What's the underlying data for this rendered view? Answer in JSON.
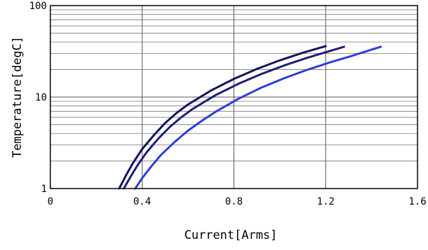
{
  "chart_data": {
    "type": "line",
    "title": "",
    "xlabel": "Current[Arms]",
    "ylabel": "Temperature[degC]",
    "xlim": [
      0,
      1.6
    ],
    "ylim": [
      1,
      100
    ],
    "y_scale": "log",
    "grid": true,
    "legend": "none",
    "x_ticks": [
      {
        "value": 0,
        "label": "0"
      },
      {
        "value": 0.4,
        "label": "0.4"
      },
      {
        "value": 0.8,
        "label": "0.8"
      },
      {
        "value": 1.2,
        "label": "1.2"
      },
      {
        "value": 1.6,
        "label": "1.6"
      }
    ],
    "y_ticks": [
      {
        "value": 1,
        "label": "1"
      },
      {
        "value": 10,
        "label": "10"
      },
      {
        "value": 100,
        "label": "100"
      }
    ],
    "series": [
      {
        "color": "#14145a",
        "x": [
          0.3,
          0.33,
          0.36,
          0.4,
          0.45,
          0.5,
          0.55,
          0.6,
          0.7,
          0.8,
          0.9,
          1.0,
          1.1,
          1.2
        ],
        "y": [
          1.0,
          1.4,
          1.9,
          2.7,
          3.8,
          5.2,
          6.7,
          8.3,
          11.8,
          15.8,
          20.3,
          25.2,
          30.5,
          36.0
        ]
      },
      {
        "color": "#1a1e78",
        "x": [
          0.32,
          0.35,
          0.38,
          0.42,
          0.47,
          0.52,
          0.57,
          0.62,
          0.72,
          0.82,
          0.92,
          1.02,
          1.12,
          1.22,
          1.28
        ],
        "y": [
          1.0,
          1.35,
          1.8,
          2.5,
          3.5,
          4.7,
          6.0,
          7.4,
          10.5,
          14.0,
          17.9,
          22.2,
          26.9,
          32.0,
          35.5
        ]
      },
      {
        "color": "#2b3fd4",
        "x": [
          0.37,
          0.4,
          0.44,
          0.48,
          0.54,
          0.6,
          0.66,
          0.72,
          0.82,
          0.92,
          1.02,
          1.12,
          1.22,
          1.32,
          1.44
        ],
        "y": [
          1.0,
          1.3,
          1.75,
          2.3,
          3.2,
          4.3,
          5.5,
          6.9,
          9.6,
          12.7,
          16.1,
          19.9,
          24.0,
          28.5,
          35.5
        ]
      }
    ]
  }
}
